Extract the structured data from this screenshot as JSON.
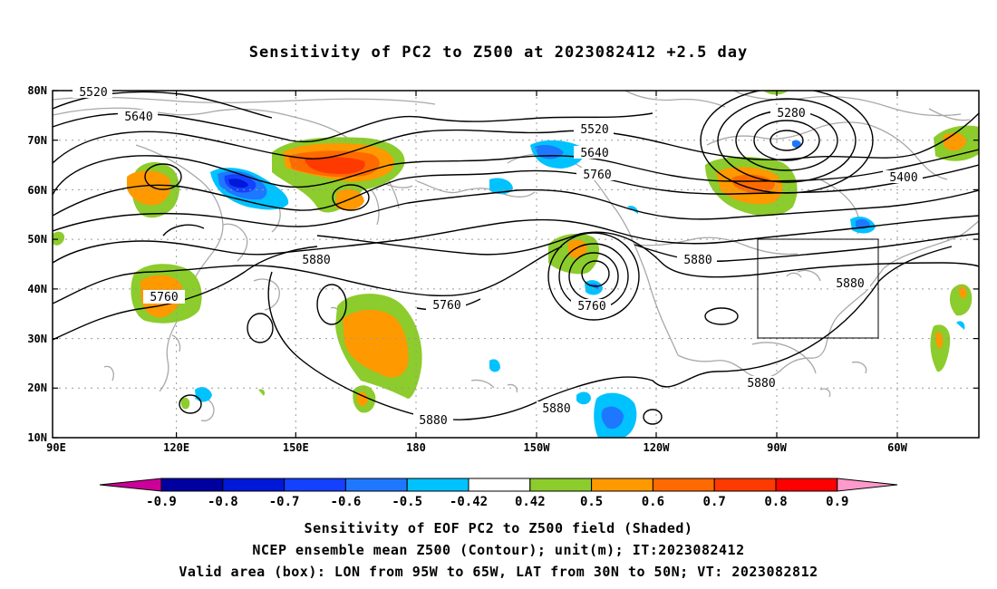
{
  "title": "Sensitivity of PC2 to Z500 at 2023082412 +2.5 day",
  "axes": {
    "lat_labels": [
      "80N",
      "70N",
      "60N",
      "50N",
      "40N",
      "30N",
      "20N",
      "10N"
    ],
    "lon_labels": [
      "90E",
      "120E",
      "150E",
      "180",
      "150W",
      "120W",
      "90W",
      "60W"
    ]
  },
  "contour_labels": [
    "5520",
    "5640",
    "5520",
    "5640",
    "5760",
    "5280",
    "5400",
    "5880",
    "5760",
    "5760",
    "5880",
    "5760",
    "5880",
    "5880",
    "5880",
    "5880"
  ],
  "valid_box": {
    "lon_min": -95,
    "lon_max": -65,
    "lat_min": 30,
    "lat_max": 50
  },
  "colorbar": {
    "ticks": [
      "-0.9",
      "-0.8",
      "-0.7",
      "-0.6",
      "-0.5",
      "-0.42",
      "0.42",
      "0.5",
      "0.6",
      "0.7",
      "0.8",
      "0.9"
    ],
    "colors": [
      "#cc0099",
      "#0000a0",
      "#0018d8",
      "#1440ff",
      "#1e78ff",
      "#00c2ff",
      "#ffffff",
      "#8ccc2c",
      "#ff9900",
      "#ff6a00",
      "#ff3a00",
      "#ff0000",
      "#ff99cc"
    ]
  },
  "captions": {
    "line1": "Sensitivity of EOF PC2 to Z500 field (Shaded)",
    "line2": "NCEP ensemble mean Z500 (Contour); unit(m); IT:2023082412",
    "line3": "Valid area (box): LON from 95W to 65W, LAT from 30N to 50N; VT: 2023082812"
  }
}
